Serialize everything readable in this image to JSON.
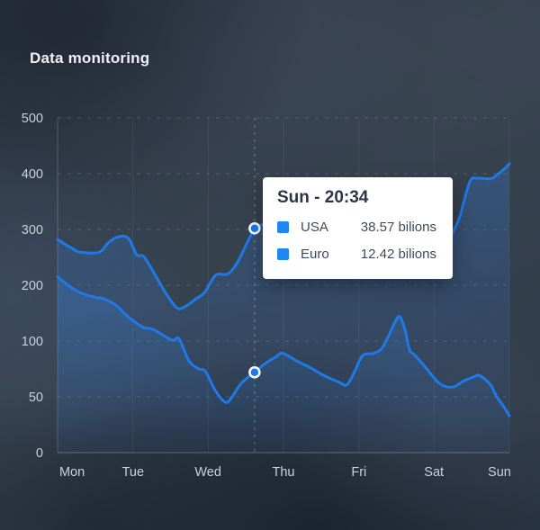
{
  "page": {
    "title": "Data monitoring"
  },
  "tooltip": {
    "title": "Sun - 20:34",
    "rows": [
      {
        "label": "USA",
        "value": "38.57 bilions",
        "swatch_color": "#1e87f0"
      },
      {
        "label": "Euro",
        "value": "12.42 bilions",
        "swatch_color": "#1e87f0"
      }
    ]
  },
  "colors": {
    "line": "#1e7ae8",
    "marker_ring": "#ffffff",
    "area_fill": "56,124,213",
    "axis_label": "#c9d2dc",
    "tooltip_bg": "#ffffff"
  },
  "chart_data": {
    "type": "line",
    "title": "Data monitoring",
    "x_labels": [
      "Mon",
      "Tue",
      "Wed",
      "Thu",
      "Fri",
      "Sat",
      "Sun"
    ],
    "y_ticks": [
      0,
      50,
      100,
      200,
      300,
      400,
      500
    ],
    "grid": true,
    "legend_position": "tooltip",
    "ylabel": "",
    "xlabel": "",
    "series": [
      {
        "name": "USA",
        "color": "#1e7ae8",
        "points": [
          [
            0,
            282
          ],
          [
            3.8,
            263
          ],
          [
            5.2,
            259
          ],
          [
            9.2,
            259
          ],
          [
            11.2,
            276
          ],
          [
            13.5,
            287
          ],
          [
            15.7,
            284
          ],
          [
            17.5,
            255
          ],
          [
            19.1,
            251
          ],
          [
            21.7,
            217
          ],
          [
            24.1,
            184
          ],
          [
            26.5,
            159
          ],
          [
            28.5,
            163
          ],
          [
            30.5,
            175
          ],
          [
            32.5,
            187
          ],
          [
            35,
            218
          ],
          [
            37.6,
            220
          ],
          [
            39.6,
            238
          ],
          [
            41.6,
            270
          ],
          [
            43.6,
            302
          ],
          [
            45,
            308
          ],
          [
            48,
            308
          ],
          [
            53,
            285
          ],
          [
            59,
            262
          ],
          [
            66,
            245
          ],
          [
            72,
            237
          ],
          [
            78,
            243
          ],
          [
            83.5,
            262
          ],
          [
            86.5,
            281
          ],
          [
            87.8,
            300
          ],
          [
            89,
            322
          ],
          [
            90,
            352
          ],
          [
            91.4,
            388
          ],
          [
            93,
            392
          ],
          [
            95.9,
            391
          ],
          [
            97.4,
            399
          ],
          [
            98.8,
            408
          ],
          [
            100,
            418
          ]
        ]
      },
      {
        "name": "Euro",
        "color": "#1e7ae8",
        "points": [
          [
            0,
            215
          ],
          [
            3.2,
            195
          ],
          [
            5.8,
            184
          ],
          [
            8.6,
            178
          ],
          [
            10.2,
            176
          ],
          [
            13.1,
            163
          ],
          [
            15.1,
            147
          ],
          [
            17.1,
            134
          ],
          [
            19.1,
            124
          ],
          [
            21.1,
            121
          ],
          [
            24.5,
            105
          ],
          [
            25.7,
            101
          ],
          [
            26.9,
            104
          ],
          [
            29.1,
            82
          ],
          [
            31.3,
            75
          ],
          [
            32.7,
            73
          ],
          [
            34.7,
            57
          ],
          [
            36.3,
            48
          ],
          [
            37.5,
            45
          ],
          [
            38.8,
            51
          ],
          [
            40.4,
            61
          ],
          [
            42,
            67
          ],
          [
            43.6,
            72
          ],
          [
            46,
            80
          ],
          [
            48.4,
            86
          ],
          [
            49.8,
            89
          ],
          [
            53,
            82
          ],
          [
            56,
            76
          ],
          [
            59,
            69
          ],
          [
            62.4,
            63
          ],
          [
            64.1,
            61
          ],
          [
            65.9,
            74
          ],
          [
            67.5,
            87
          ],
          [
            69.9,
            89
          ],
          [
            71.7,
            93
          ],
          [
            73.3,
            110
          ],
          [
            74.5,
            131
          ],
          [
            75.7,
            144
          ],
          [
            76.9,
            120
          ],
          [
            77.9,
            92
          ],
          [
            78.9,
            88
          ],
          [
            80.9,
            79
          ],
          [
            82.9,
            69
          ],
          [
            84.5,
            62
          ],
          [
            86.1,
            59
          ],
          [
            87.8,
            59
          ],
          [
            89.8,
            64
          ],
          [
            92.2,
            68
          ],
          [
            93.4,
            69
          ],
          [
            95.8,
            61
          ],
          [
            97.2,
            50
          ],
          [
            98.8,
            41
          ],
          [
            100,
            33
          ]
        ]
      }
    ],
    "highlight": {
      "x_percent": 43.6,
      "label": "Sun - 20:34",
      "marker_values": {
        "USA": 302,
        "Euro": 72
      }
    }
  }
}
